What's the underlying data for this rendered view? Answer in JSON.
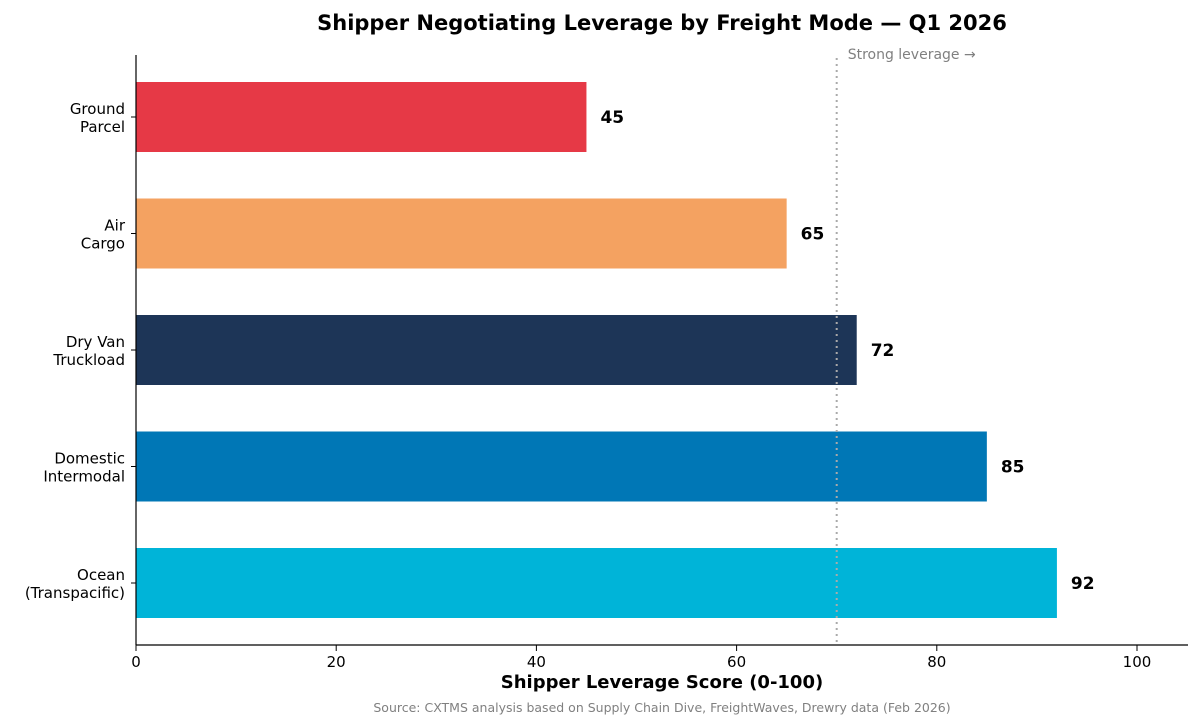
{
  "chart_data": {
    "type": "bar",
    "orientation": "horizontal",
    "title": "Shipper Negotiating Leverage by Freight Mode — Q1 2026",
    "xlabel": "Shipper Leverage Score (0-100)",
    "ylabel": "",
    "categories": [
      [
        "Ground",
        "Parcel"
      ],
      [
        "Air",
        "Cargo"
      ],
      [
        "Dry Van",
        "Truckload"
      ],
      [
        "Domestic",
        "Intermodal"
      ],
      [
        "Ocean",
        "(Transpacific)"
      ]
    ],
    "values": [
      45,
      65,
      72,
      85,
      92
    ],
    "data_labels": [
      "45",
      "65",
      "72",
      "85",
      "92"
    ],
    "colors": [
      "#E63946",
      "#F4A261",
      "#1D3557",
      "#0077B6",
      "#00B4D8"
    ],
    "xlim": [
      0,
      105
    ],
    "xticks": [
      0,
      20,
      40,
      60,
      80,
      100
    ],
    "xtick_labels": [
      "0",
      "20",
      "40",
      "60",
      "80",
      "100"
    ],
    "grid": false,
    "reference_line": {
      "x": 70,
      "style": "dotted",
      "color": "#aaaaaa",
      "label": "Strong leverage →"
    },
    "source": "Source: CXTMS analysis based on Supply Chain Dive, FreightWaves, Drewry data (Feb 2026)"
  }
}
